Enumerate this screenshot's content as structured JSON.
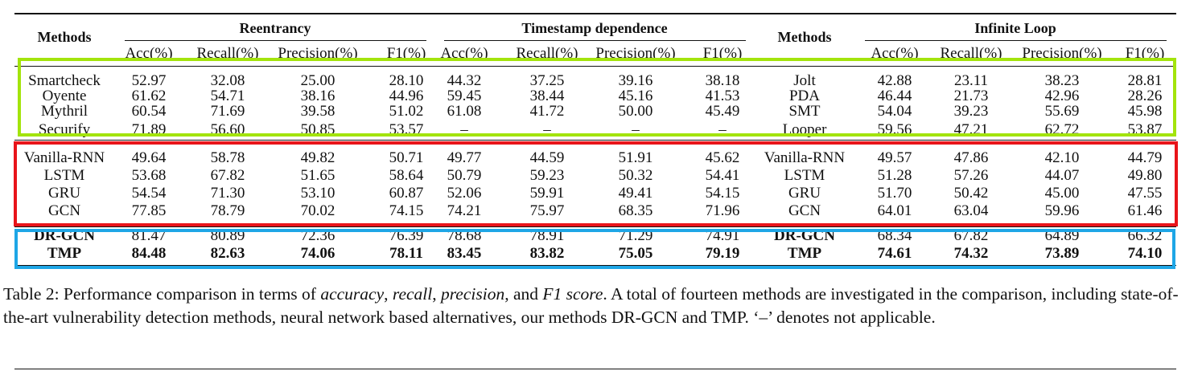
{
  "table": {
    "methods_header": "Methods",
    "groups": [
      "Reentrancy",
      "Timestamp dependence",
      "Infinite Loop"
    ],
    "subheaders": [
      "Acc(%)",
      "Recall(%)",
      "Precision(%)",
      "F1(%)"
    ],
    "sections": [
      {
        "name": "state-of-the-art",
        "box_color": "#a3e40c",
        "rows": [
          {
            "left": "Smartcheck",
            "re": [
              "52.97",
              "32.08",
              "25.00",
              "28.10"
            ],
            "ts": [
              "44.32",
              "37.25",
              "39.16",
              "38.18"
            ],
            "right": "Jolt",
            "il": [
              "42.88",
              "23.11",
              "38.23",
              "28.81"
            ]
          },
          {
            "left": "Oyente",
            "re": [
              "61.62",
              "54.71",
              "38.16",
              "44.96"
            ],
            "ts": [
              "59.45",
              "38.44",
              "45.16",
              "41.53"
            ],
            "right": "PDA",
            "il": [
              "46.44",
              "21.73",
              "42.96",
              "28.26"
            ]
          },
          {
            "left": "Mythril",
            "re": [
              "60.54",
              "71.69",
              "39.58",
              "51.02"
            ],
            "ts": [
              "61.08",
              "41.72",
              "50.00",
              "45.49"
            ],
            "right": "SMT",
            "il": [
              "54.04",
              "39.23",
              "55.69",
              "45.98"
            ]
          },
          {
            "left": "Securify",
            "re": [
              "71.89",
              "56.60",
              "50.85",
              "53.57"
            ],
            "ts": [
              "–",
              "–",
              "–",
              "–"
            ],
            "right": "Looper",
            "il": [
              "59.56",
              "47.21",
              "62.72",
              "53.87"
            ]
          }
        ]
      },
      {
        "name": "neural-network",
        "box_color": "#e8141a",
        "rows": [
          {
            "left": "Vanilla-RNN",
            "re": [
              "49.64",
              "58.78",
              "49.82",
              "50.71"
            ],
            "ts": [
              "49.77",
              "44.59",
              "51.91",
              "45.62"
            ],
            "right": "Vanilla-RNN",
            "il": [
              "49.57",
              "47.86",
              "42.10",
              "44.79"
            ]
          },
          {
            "left": "LSTM",
            "re": [
              "53.68",
              "67.82",
              "51.65",
              "58.64"
            ],
            "ts": [
              "50.79",
              "59.23",
              "50.32",
              "54.41"
            ],
            "right": "LSTM",
            "il": [
              "51.28",
              "57.26",
              "44.07",
              "49.80"
            ]
          },
          {
            "left": "GRU",
            "re": [
              "54.54",
              "71.30",
              "53.10",
              "60.87"
            ],
            "ts": [
              "52.06",
              "59.91",
              "49.41",
              "54.15"
            ],
            "right": "GRU",
            "il": [
              "51.70",
              "50.42",
              "45.00",
              "47.55"
            ]
          },
          {
            "left": "GCN",
            "re": [
              "77.85",
              "78.79",
              "70.02",
              "74.15"
            ],
            "ts": [
              "74.21",
              "75.97",
              "68.35",
              "71.96"
            ],
            "right": "GCN",
            "il": [
              "64.01",
              "63.04",
              "59.96",
              "61.46"
            ]
          }
        ]
      },
      {
        "name": "ours",
        "box_color": "#1ea6e6",
        "rows": [
          {
            "left": "DR-GCN",
            "re": [
              "81.47",
              "80.89",
              "72.36",
              "76.39"
            ],
            "ts": [
              "78.68",
              "78.91",
              "71.29",
              "74.91"
            ],
            "right": "DR-GCN",
            "il": [
              "68.34",
              "67.82",
              "64.89",
              "66.32"
            ],
            "bold_name": true
          },
          {
            "left": "TMP",
            "re": [
              "84.48",
              "82.63",
              "74.06",
              "78.11"
            ],
            "ts": [
              "83.45",
              "83.82",
              "75.05",
              "79.19"
            ],
            "right": "TMP",
            "il": [
              "74.61",
              "74.32",
              "73.89",
              "74.10"
            ],
            "bold_name": true,
            "bold_values": true
          }
        ]
      }
    ]
  },
  "caption": {
    "label": "Table 2: Performance comparison in terms of ",
    "m1": "accuracy",
    "s1": ", ",
    "m2": "recall",
    "s2": ", ",
    "m3": "precision",
    "s3": ", and ",
    "m4": "F1 score",
    "rest": ". A total of fourteen methods are investigated in the comparison, including state-of-the-art vulnerability detection methods, neural network based alternatives, our methods DR-GCN and TMP. ‘–’ denotes not applicable."
  }
}
